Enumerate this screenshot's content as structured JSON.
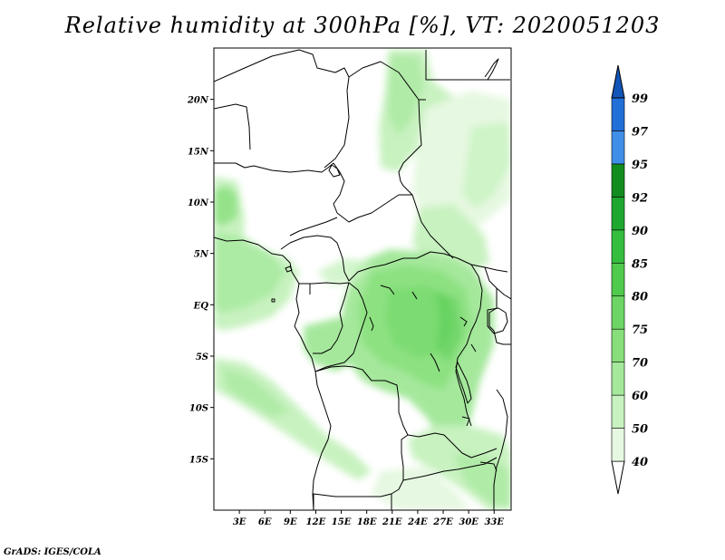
{
  "title": "Relative humidity at 300hPa [%], VT: 2020051203",
  "footer": "GrADS: IGES/COLA",
  "chart_data": {
    "type": "heatmap",
    "title": "Relative humidity at 300hPa [%], VT: 2020051203",
    "variable": "Relative humidity",
    "level": "300hPa",
    "unit": "%",
    "valid_time": "2020051203",
    "lon_range": [
      0,
      35
    ],
    "lat_range": [
      -20,
      25
    ],
    "x_ticks": [
      "3E",
      "6E",
      "9E",
      "12E",
      "15E",
      "18E",
      "21E",
      "24E",
      "27E",
      "30E",
      "33E"
    ],
    "x_tick_values": [
      3,
      6,
      9,
      12,
      15,
      18,
      21,
      24,
      27,
      30,
      33
    ],
    "y_ticks": [
      "20N",
      "15N",
      "10N",
      "5N",
      "EQ",
      "5S",
      "10S",
      "15S"
    ],
    "y_tick_values": [
      20,
      15,
      10,
      5,
      0,
      -5,
      -10,
      -15
    ],
    "colorbar": {
      "levels": [
        "40",
        "50",
        "60",
        "70",
        "75",
        "80",
        "85",
        "90",
        "92",
        "95",
        "97",
        "99"
      ],
      "colors": [
        "#ffffff",
        "#e6f8e1",
        "#c8f2c0",
        "#a5e89c",
        "#87de7a",
        "#6cd563",
        "#50ca4d",
        "#35bd3e",
        "#1ea830",
        "#138c1f",
        "#3f8ee8",
        "#2070d8",
        "#1255b8"
      ],
      "extend": "both"
    },
    "map_features": [
      "country-borders",
      "coastline",
      "lakes"
    ]
  }
}
